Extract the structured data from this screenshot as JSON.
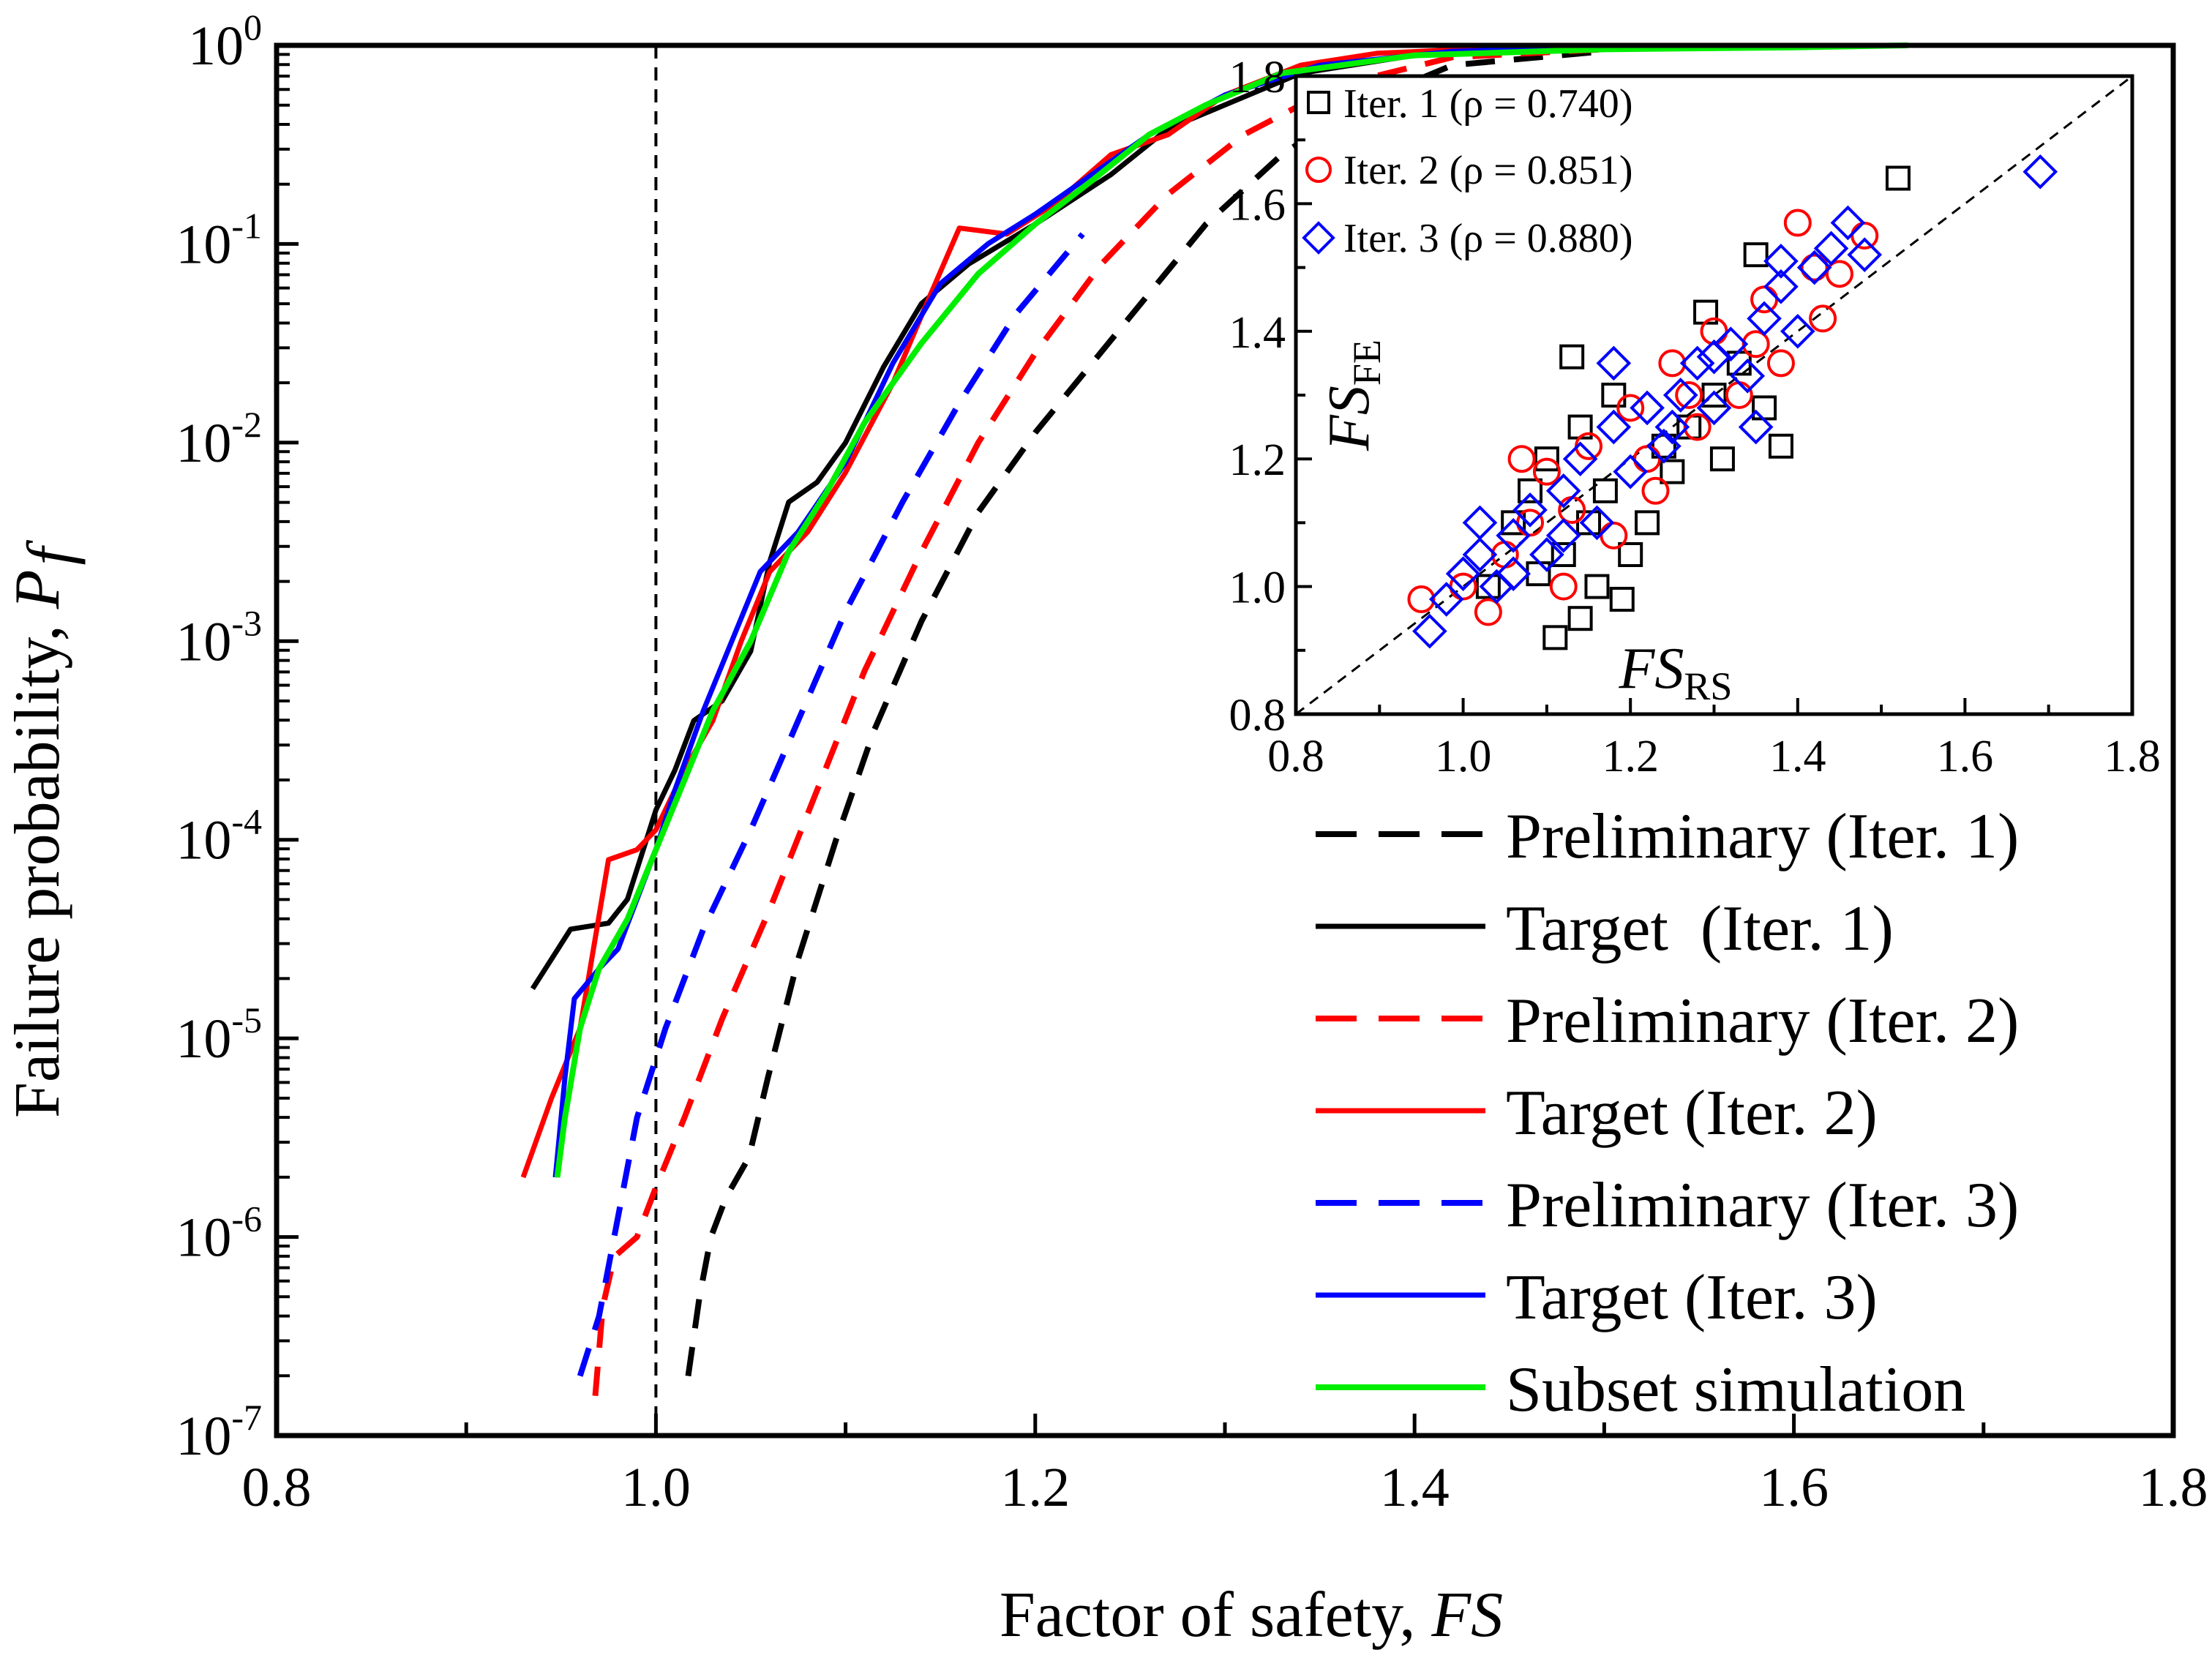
{
  "chart_data": [
    {
      "id": "main",
      "type": "line",
      "xscale": "linear",
      "yscale": "log",
      "xlabel": "Factor of safety, ",
      "xlabel_italic": "FS",
      "ylabel": "Failure probability, ",
      "ylabel_italic": "P",
      "ylabel_sub": "f",
      "xlim": [
        0.8,
        1.8
      ],
      "ylim_exponent": [
        -7,
        0
      ],
      "xticks": [
        "0.8",
        "1.0",
        "1.2",
        "1.4",
        "1.6",
        "1.8"
      ],
      "yticks": [
        {
          "base": "10",
          "exp": "0"
        },
        {
          "base": "10",
          "exp": "-1"
        },
        {
          "base": "10",
          "exp": "-2"
        },
        {
          "base": "10",
          "exp": "-3"
        },
        {
          "base": "10",
          "exp": "-4"
        },
        {
          "base": "10",
          "exp": "-5"
        },
        {
          "base": "10",
          "exp": "-6"
        },
        {
          "base": "10",
          "exp": "-7"
        }
      ],
      "reference_line": {
        "x": 1.0,
        "style": "dashed",
        "color": "#000000"
      },
      "legend_position": "bottom-right",
      "series": [
        {
          "name": "Preliminary (Iter. 1)",
          "color": "#000000",
          "style": "dashed",
          "width": 8,
          "points": [
            [
              1.017,
              -6.7
            ],
            [
              1.023,
              -6.3
            ],
            [
              1.029,
              -6.0
            ],
            [
              1.037,
              -5.8
            ],
            [
              1.049,
              -5.6
            ],
            [
              1.059,
              -5.2
            ],
            [
              1.075,
              -4.6
            ],
            [
              1.095,
              -4.0
            ],
            [
              1.115,
              -3.45
            ],
            [
              1.14,
              -2.9
            ],
            [
              1.17,
              -2.35
            ],
            [
              1.2,
              -1.95
            ],
            [
              1.23,
              -1.6
            ],
            [
              1.26,
              -1.25
            ],
            [
              1.29,
              -0.9
            ],
            [
              1.33,
              -0.55
            ],
            [
              1.37,
              -0.3
            ],
            [
              1.42,
              -0.1
            ],
            [
              1.5,
              -0.03
            ]
          ]
        },
        {
          "name": "Target  (Iter. 1)",
          "color": "#000000",
          "style": "solid",
          "width": 7,
          "points": [
            [
              0.935,
              -4.75
            ],
            [
              0.955,
              -4.45
            ],
            [
              0.975,
              -4.42
            ],
            [
              0.985,
              -4.3
            ],
            [
              1.0,
              -3.85
            ],
            [
              1.01,
              -3.65
            ],
            [
              1.02,
              -3.4
            ],
            [
              1.035,
              -3.3
            ],
            [
              1.05,
              -3.05
            ],
            [
              1.06,
              -2.6
            ],
            [
              1.07,
              -2.3
            ],
            [
              1.085,
              -2.2
            ],
            [
              1.1,
              -2.0
            ],
            [
              1.12,
              -1.62
            ],
            [
              1.14,
              -1.3
            ],
            [
              1.165,
              -1.1
            ],
            [
              1.2,
              -0.9
            ],
            [
              1.24,
              -0.65
            ],
            [
              1.27,
              -0.42
            ],
            [
              1.3,
              -0.3
            ],
            [
              1.34,
              -0.14
            ],
            [
              1.4,
              -0.05
            ],
            [
              1.45,
              -0.02
            ]
          ]
        },
        {
          "name": "Preliminary (Iter. 2)",
          "color": "#ff0000",
          "style": "dashed",
          "width": 8,
          "points": [
            [
              0.968,
              -6.8
            ],
            [
              0.972,
              -6.35
            ],
            [
              0.978,
              -6.1
            ],
            [
              0.99,
              -6.0
            ],
            [
              1.0,
              -5.75
            ],
            [
              1.015,
              -5.4
            ],
            [
              1.035,
              -4.9
            ],
            [
              1.06,
              -4.35
            ],
            [
              1.085,
              -3.75
            ],
            [
              1.11,
              -3.15
            ],
            [
              1.14,
              -2.55
            ],
            [
              1.17,
              -2.0
            ],
            [
              1.2,
              -1.55
            ],
            [
              1.235,
              -1.1
            ],
            [
              1.27,
              -0.75
            ],
            [
              1.31,
              -0.45
            ],
            [
              1.36,
              -0.2
            ],
            [
              1.42,
              -0.06
            ],
            [
              1.5,
              -0.02
            ]
          ]
        },
        {
          "name": "Target (Iter. 2)",
          "color": "#ff0000",
          "style": "solid",
          "width": 7,
          "points": [
            [
              0.93,
              -5.7
            ],
            [
              0.945,
              -5.3
            ],
            [
              0.96,
              -4.95
            ],
            [
              0.975,
              -4.1
            ],
            [
              0.99,
              -4.05
            ],
            [
              1.0,
              -3.95
            ],
            [
              1.015,
              -3.65
            ],
            [
              1.03,
              -3.4
            ],
            [
              1.045,
              -3.0
            ],
            [
              1.06,
              -2.65
            ],
            [
              1.08,
              -2.45
            ],
            [
              1.1,
              -2.15
            ],
            [
              1.125,
              -1.7
            ],
            [
              1.145,
              -1.25
            ],
            [
              1.16,
              -0.92
            ],
            [
              1.185,
              -0.95
            ],
            [
              1.21,
              -0.8
            ],
            [
              1.24,
              -0.55
            ],
            [
              1.27,
              -0.45
            ],
            [
              1.3,
              -0.25
            ],
            [
              1.34,
              -0.1
            ],
            [
              1.38,
              -0.04
            ],
            [
              1.45,
              -0.01
            ]
          ]
        },
        {
          "name": "Preliminary (Iter. 3)",
          "color": "#0000ff",
          "style": "dashed",
          "width": 8,
          "points": [
            [
              0.96,
              -6.7
            ],
            [
              0.97,
              -6.4
            ],
            [
              0.98,
              -5.9
            ],
            [
              0.99,
              -5.4
            ],
            [
              1.005,
              -4.95
            ],
            [
              1.025,
              -4.45
            ],
            [
              1.05,
              -3.95
            ],
            [
              1.075,
              -3.4
            ],
            [
              1.1,
              -2.85
            ],
            [
              1.13,
              -2.3
            ],
            [
              1.16,
              -1.8
            ],
            [
              1.19,
              -1.35
            ],
            [
              1.225,
              -0.95
            ]
          ]
        },
        {
          "name": "Target (Iter. 3)",
          "color": "#0000ff",
          "style": "solid",
          "width": 7,
          "points": [
            [
              0.947,
              -5.7
            ],
            [
              0.952,
              -5.2
            ],
            [
              0.957,
              -4.8
            ],
            [
              0.97,
              -4.65
            ],
            [
              0.98,
              -4.55
            ],
            [
              0.99,
              -4.3
            ],
            [
              1.0,
              -4.05
            ],
            [
              1.01,
              -3.75
            ],
            [
              1.025,
              -3.35
            ],
            [
              1.04,
              -3.0
            ],
            [
              1.055,
              -2.65
            ],
            [
              1.075,
              -2.45
            ],
            [
              1.1,
              -2.1
            ],
            [
              1.125,
              -1.6
            ],
            [
              1.15,
              -1.2
            ],
            [
              1.175,
              -1.0
            ],
            [
              1.2,
              -0.85
            ],
            [
              1.23,
              -0.65
            ],
            [
              1.26,
              -0.45
            ],
            [
              1.3,
              -0.25
            ],
            [
              1.35,
              -0.1
            ],
            [
              1.42,
              -0.03
            ],
            [
              1.5,
              -0.01
            ]
          ]
        },
        {
          "name": "Subset simulation",
          "color": "#00ee00",
          "style": "solid",
          "width": 8,
          "points": [
            [
              0.948,
              -5.7
            ],
            [
              0.952,
              -5.4
            ],
            [
              0.96,
              -4.95
            ],
            [
              0.97,
              -4.65
            ],
            [
              0.985,
              -4.4
            ],
            [
              1.0,
              -4.05
            ],
            [
              1.015,
              -3.7
            ],
            [
              1.03,
              -3.35
            ],
            [
              1.05,
              -3.0
            ],
            [
              1.07,
              -2.55
            ],
            [
              1.09,
              -2.25
            ],
            [
              1.11,
              -1.9
            ],
            [
              1.14,
              -1.5
            ],
            [
              1.17,
              -1.15
            ],
            [
              1.2,
              -0.9
            ],
            [
              1.23,
              -0.68
            ],
            [
              1.26,
              -0.45
            ],
            [
              1.29,
              -0.3
            ],
            [
              1.33,
              -0.14
            ],
            [
              1.4,
              -0.05
            ],
            [
              1.5,
              -0.02
            ],
            [
              1.6,
              -0.01
            ],
            [
              1.66,
              0.0
            ]
          ]
        }
      ]
    },
    {
      "id": "inset",
      "type": "scatter",
      "xlabel": "FS",
      "xlabel_sub": "RS",
      "ylabel": "FS",
      "ylabel_sub": "FE",
      "xlim": [
        0.8,
        1.8
      ],
      "ylim": [
        0.8,
        1.8
      ],
      "xticks": [
        "0.8",
        "1.0",
        "1.2",
        "1.4",
        "1.6",
        "1.8"
      ],
      "yticks": [
        "0.8",
        "1.0",
        "1.2",
        "1.4",
        "1.6",
        "1.8"
      ],
      "reference_line": "y = x (dashed)",
      "legend_position": "top-left",
      "series": [
        {
          "name": "Iter. 1",
          "rho_label": "ρ = 0.740",
          "marker": "square",
          "color": "#000000",
          "points": [
            [
              1.11,
              0.92
            ],
            [
              1.14,
              0.95
            ],
            [
              1.09,
              1.02
            ],
            [
              1.12,
              1.05
            ],
            [
              1.15,
              1.1
            ],
            [
              1.17,
              1.15
            ],
            [
              1.1,
              1.2
            ],
            [
              1.14,
              1.25
            ],
            [
              1.18,
              1.3
            ],
            [
              1.2,
              1.05
            ],
            [
              1.22,
              1.1
            ],
            [
              1.25,
              1.18
            ],
            [
              1.27,
              1.25
            ],
            [
              1.3,
              1.3
            ],
            [
              1.33,
              1.35
            ],
            [
              1.36,
              1.28
            ],
            [
              1.38,
              1.22
            ],
            [
              1.29,
              1.43
            ],
            [
              1.35,
              1.52
            ],
            [
              1.52,
              1.64
            ],
            [
              1.13,
              1.36
            ],
            [
              1.16,
              1.0
            ],
            [
              1.06,
              1.1
            ],
            [
              1.03,
              1.0
            ],
            [
              1.24,
              1.22
            ],
            [
              1.31,
              1.2
            ],
            [
              1.08,
              1.15
            ],
            [
              1.19,
              0.98
            ]
          ]
        },
        {
          "name": "Iter. 2",
          "rho_label": "ρ = 0.851",
          "marker": "circle",
          "color": "#ff0000",
          "points": [
            [
              0.95,
              0.98
            ],
            [
              1.0,
              1.0
            ],
            [
              1.03,
              0.96
            ],
            [
              1.05,
              1.05
            ],
            [
              1.08,
              1.1
            ],
            [
              1.1,
              1.18
            ],
            [
              1.12,
              1.0
            ],
            [
              1.15,
              1.22
            ],
            [
              1.18,
              1.08
            ],
            [
              1.2,
              1.28
            ],
            [
              1.22,
              1.2
            ],
            [
              1.25,
              1.35
            ],
            [
              1.28,
              1.25
            ],
            [
              1.3,
              1.4
            ],
            [
              1.33,
              1.3
            ],
            [
              1.36,
              1.45
            ],
            [
              1.38,
              1.35
            ],
            [
              1.4,
              1.57
            ],
            [
              1.42,
              1.5
            ],
            [
              1.45,
              1.49
            ],
            [
              1.48,
              1.55
            ],
            [
              1.43,
              1.42
            ],
            [
              1.35,
              1.38
            ],
            [
              1.27,
              1.3
            ],
            [
              1.07,
              1.2
            ],
            [
              1.13,
              1.12
            ],
            [
              1.23,
              1.15
            ]
          ]
        },
        {
          "name": "Iter. 3",
          "rho_label": "ρ = 0.880",
          "marker": "diamond",
          "color": "#0000ff",
          "points": [
            [
              0.96,
              0.93
            ],
            [
              0.98,
              0.98
            ],
            [
              1.0,
              1.02
            ],
            [
              1.02,
              1.05
            ],
            [
              1.04,
              1.0
            ],
            [
              1.06,
              1.08
            ],
            [
              1.08,
              1.12
            ],
            [
              1.1,
              1.05
            ],
            [
              1.12,
              1.15
            ],
            [
              1.14,
              1.2
            ],
            [
              1.16,
              1.1
            ],
            [
              1.18,
              1.25
            ],
            [
              1.2,
              1.18
            ],
            [
              1.22,
              1.28
            ],
            [
              1.24,
              1.22
            ],
            [
              1.26,
              1.3
            ],
            [
              1.28,
              1.35
            ],
            [
              1.3,
              1.28
            ],
            [
              1.32,
              1.38
            ],
            [
              1.34,
              1.33
            ],
            [
              1.36,
              1.42
            ],
            [
              1.38,
              1.47
            ],
            [
              1.4,
              1.4
            ],
            [
              1.42,
              1.5
            ],
            [
              1.44,
              1.53
            ],
            [
              1.46,
              1.57
            ],
            [
              1.48,
              1.52
            ],
            [
              1.38,
              1.51
            ],
            [
              1.3,
              1.36
            ],
            [
              1.18,
              1.35
            ],
            [
              1.12,
              1.08
            ],
            [
              1.06,
              1.02
            ],
            [
              1.02,
              1.1
            ],
            [
              1.69,
              1.65
            ],
            [
              1.25,
              1.25
            ],
            [
              1.35,
              1.25
            ]
          ]
        }
      ]
    }
  ]
}
